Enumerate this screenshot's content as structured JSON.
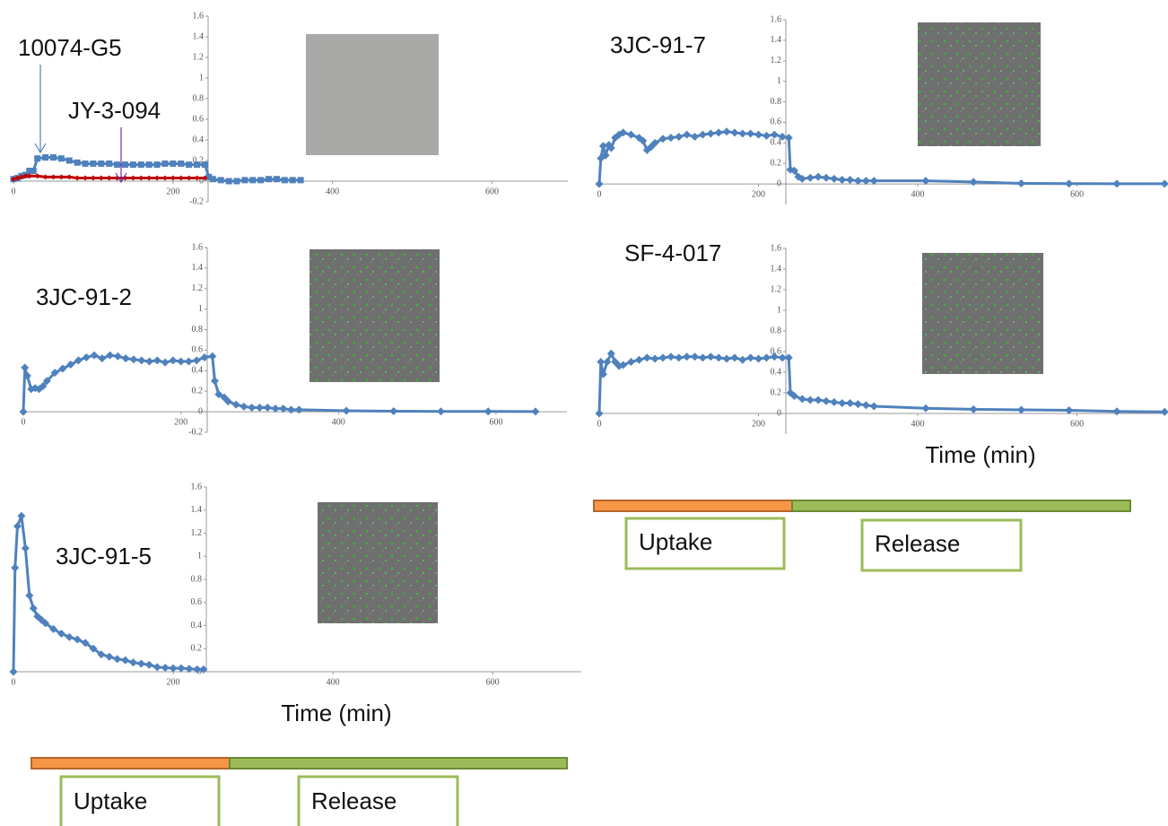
{
  "chart_data": [
    {
      "type": "line",
      "xlim": [
        0,
        695
      ],
      "ylim": [
        -0.2,
        1.6
      ],
      "xticks": [
        0,
        200,
        400,
        600
      ],
      "yticks": [
        -0.2,
        0,
        0.2,
        0.4,
        0.6,
        0.8,
        1,
        1.2,
        1.4,
        1.6
      ],
      "series": [
        {
          "name": "10074-G5",
          "color": "#4f81bd",
          "marker": "square",
          "x": [
            0,
            5,
            10,
            15,
            20,
            25,
            30,
            40,
            50,
            60,
            70,
            80,
            90,
            100,
            110,
            120,
            130,
            140,
            150,
            160,
            170,
            180,
            190,
            200,
            210,
            220,
            230,
            240,
            245,
            250,
            260,
            270,
            280,
            290,
            300,
            310,
            320,
            330,
            340,
            350,
            360
          ],
          "values": [
            0.02,
            0.03,
            0.05,
            0.06,
            0.1,
            0.1,
            0.22,
            0.23,
            0.23,
            0.22,
            0.2,
            0.18,
            0.17,
            0.17,
            0.17,
            0.17,
            0.16,
            0.16,
            0.16,
            0.16,
            0.16,
            0.16,
            0.17,
            0.17,
            0.17,
            0.16,
            0.16,
            0.16,
            0.04,
            0.02,
            0.01,
            0,
            0,
            0.01,
            0.01,
            0.01,
            0.02,
            0.02,
            0.01,
            0.01,
            0.01
          ]
        },
        {
          "name": "JY-3-094",
          "color": "#c00000",
          "marker": "diamond",
          "x": [
            0,
            5,
            10,
            15,
            20,
            30,
            40,
            50,
            60,
            70,
            80,
            90,
            100,
            110,
            120,
            130,
            140,
            150,
            160,
            170,
            180,
            190,
            200,
            210,
            220,
            230,
            240
          ],
          "values": [
            0.02,
            0.03,
            0.04,
            0.05,
            0.05,
            0.05,
            0.04,
            0.04,
            0.04,
            0.04,
            0.03,
            0.03,
            0.03,
            0.03,
            0.03,
            0.03,
            0.03,
            0.03,
            0.03,
            0.03,
            0.03,
            0.03,
            0.03,
            0.03,
            0.03,
            0.03,
            0.03
          ]
        }
      ]
    },
    {
      "type": "line",
      "title": "3JC-91-7",
      "xlim": [
        0,
        712
      ],
      "ylim": [
        -0.2,
        1.6
      ],
      "xticks": [
        0,
        200,
        400,
        600
      ],
      "yticks": [
        0,
        0.2,
        0.4,
        0.6,
        0.8,
        1,
        1.2,
        1.4,
        1.6
      ],
      "series": [
        {
          "color": "#4f81bd",
          "marker": "diamond",
          "x": [
            0,
            2,
            5,
            8,
            12,
            15,
            20,
            25,
            30,
            40,
            50,
            55,
            60,
            65,
            70,
            80,
            90,
            100,
            110,
            120,
            130,
            140,
            150,
            160,
            170,
            180,
            190,
            200,
            210,
            220,
            230,
            238,
            240,
            245,
            250,
            255,
            265,
            275,
            285,
            295,
            305,
            315,
            325,
            335,
            345,
            410,
            470,
            530,
            590,
            650,
            710
          ],
          "values": [
            0,
            0.25,
            0.37,
            0.28,
            0.38,
            0.35,
            0.45,
            0.48,
            0.5,
            0.48,
            0.45,
            0.42,
            0.33,
            0.36,
            0.4,
            0.44,
            0.45,
            0.46,
            0.48,
            0.46,
            0.48,
            0.49,
            0.5,
            0.51,
            0.5,
            0.49,
            0.49,
            0.48,
            0.47,
            0.48,
            0.46,
            0.45,
            0.14,
            0.13,
            0.07,
            0.05,
            0.06,
            0.07,
            0.06,
            0.05,
            0.04,
            0.04,
            0.03,
            0.03,
            0.03,
            0.03,
            0.02,
            0.005,
            0.003,
            0.002,
            0.002
          ]
        }
      ]
    },
    {
      "type": "line",
      "title": "3JC-91-2",
      "xlim": [
        0,
        690
      ],
      "ylim": [
        -0.2,
        1.6
      ],
      "xticks": [
        0,
        200,
        400,
        600
      ],
      "yticks": [
        -0.2,
        0,
        0.2,
        0.4,
        0.6,
        0.8,
        1,
        1.2,
        1.4,
        1.6
      ],
      "series": [
        {
          "color": "#4f81bd",
          "marker": "diamond",
          "x": [
            0,
            2,
            5,
            10,
            15,
            20,
            25,
            30,
            40,
            50,
            60,
            70,
            80,
            90,
            100,
            110,
            120,
            130,
            140,
            150,
            160,
            170,
            180,
            190,
            200,
            210,
            220,
            230,
            240,
            243,
            248,
            255,
            260,
            270,
            280,
            290,
            300,
            310,
            320,
            330,
            340,
            350,
            410,
            470,
            530,
            590,
            650
          ],
          "values": [
            0,
            0.43,
            0.35,
            0.22,
            0.23,
            0.22,
            0.25,
            0.3,
            0.38,
            0.42,
            0.46,
            0.5,
            0.53,
            0.55,
            0.52,
            0.55,
            0.54,
            0.52,
            0.51,
            0.5,
            0.49,
            0.5,
            0.48,
            0.5,
            0.49,
            0.49,
            0.5,
            0.53,
            0.54,
            0.3,
            0.17,
            0.14,
            0.1,
            0.07,
            0.05,
            0.04,
            0.04,
            0.04,
            0.03,
            0.03,
            0.02,
            0.02,
            0.01,
            0.005,
            0.003,
            0.003,
            0.002
          ]
        }
      ]
    },
    {
      "type": "line",
      "title": "SF-4-017",
      "x_label": "Time (min)",
      "xlim": [
        0,
        712
      ],
      "ylim": [
        -0.2,
        1.6
      ],
      "xticks": [
        0,
        200,
        400,
        600
      ],
      "yticks": [
        0,
        0.2,
        0.4,
        0.6,
        0.8,
        1,
        1.2,
        1.4,
        1.6
      ],
      "series": [
        {
          "color": "#4f81bd",
          "marker": "diamond",
          "x": [
            0,
            2,
            5,
            10,
            15,
            20,
            25,
            30,
            40,
            50,
            60,
            70,
            80,
            90,
            100,
            110,
            120,
            130,
            140,
            150,
            160,
            170,
            180,
            190,
            200,
            210,
            220,
            230,
            238,
            240,
            245,
            255,
            265,
            275,
            285,
            295,
            305,
            315,
            325,
            335,
            345,
            410,
            470,
            530,
            590,
            650,
            710
          ],
          "values": [
            0,
            0.5,
            0.38,
            0.5,
            0.58,
            0.5,
            0.46,
            0.47,
            0.5,
            0.52,
            0.54,
            0.53,
            0.54,
            0.55,
            0.54,
            0.55,
            0.55,
            0.54,
            0.55,
            0.54,
            0.53,
            0.54,
            0.52,
            0.54,
            0.53,
            0.54,
            0.55,
            0.54,
            0.54,
            0.2,
            0.17,
            0.14,
            0.13,
            0.13,
            0.12,
            0.11,
            0.1,
            0.1,
            0.09,
            0.08,
            0.07,
            0.05,
            0.04,
            0.035,
            0.03,
            0.02,
            0.015
          ]
        }
      ]
    },
    {
      "type": "line",
      "title": "3JC-91-5",
      "x_label": "Time (min)",
      "xlim": [
        0,
        711
      ],
      "ylim": [
        0,
        1.6
      ],
      "xticks": [
        0,
        200,
        400,
        600
      ],
      "yticks": [
        0,
        0.2,
        0.4,
        0.6,
        0.8,
        1,
        1.2,
        1.4,
        1.6
      ],
      "series": [
        {
          "color": "#4f81bd",
          "marker": "diamond",
          "x": [
            0,
            2,
            5,
            10,
            15,
            20,
            25,
            30,
            35,
            40,
            50,
            60,
            70,
            80,
            90,
            100,
            110,
            120,
            130,
            140,
            150,
            160,
            170,
            180,
            190,
            200,
            210,
            220,
            230,
            238
          ],
          "values": [
            0,
            0.9,
            1.26,
            1.35,
            1.07,
            0.66,
            0.55,
            0.48,
            0.45,
            0.42,
            0.37,
            0.33,
            0.3,
            0.28,
            0.25,
            0.2,
            0.15,
            0.13,
            0.11,
            0.1,
            0.08,
            0.07,
            0.06,
            0.04,
            0.035,
            0.03,
            0.03,
            0.025,
            0.02,
            0.02
          ]
        }
      ]
    }
  ],
  "timelines": [
    {
      "uptake": "Uptake",
      "release": "Release"
    },
    {
      "uptake": "Uptake",
      "release": "Release"
    }
  ]
}
